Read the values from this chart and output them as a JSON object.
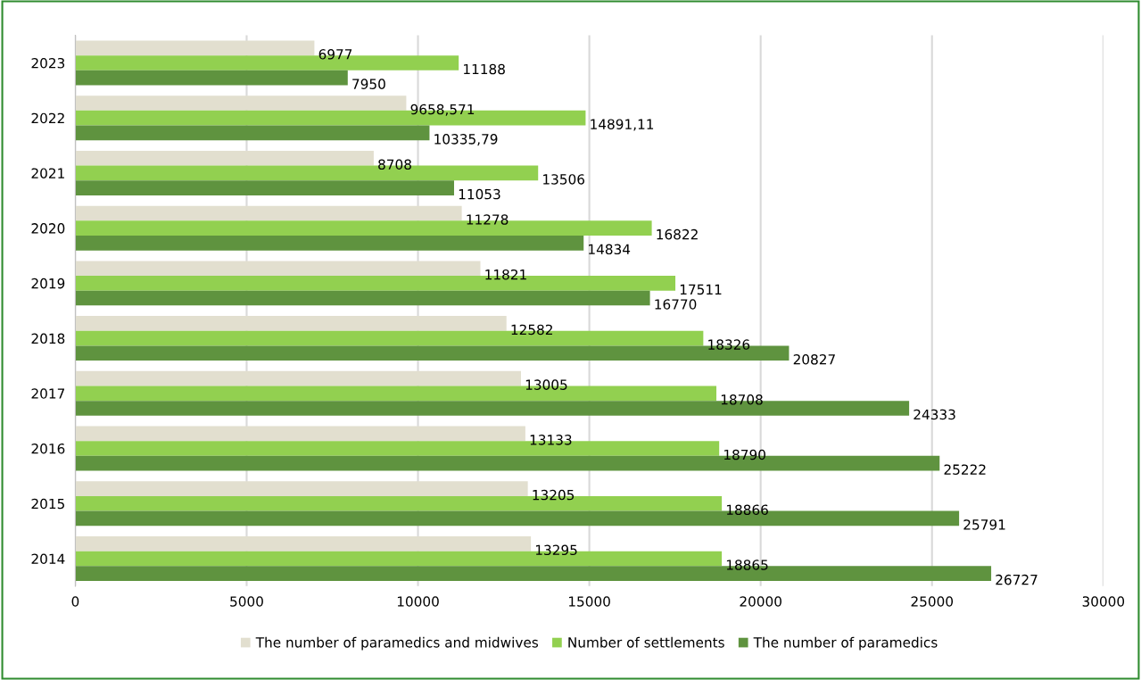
{
  "chart_data": {
    "type": "bar",
    "orientation": "horizontal",
    "categories": [
      "2023",
      "2022",
      "2021",
      "2020",
      "2019",
      "2018",
      "2017",
      "2016",
      "2015",
      "2014"
    ],
    "series": [
      {
        "name": "The number of paramedics and midwives",
        "color": "#e2dfcf",
        "values": [
          6977,
          9658.571,
          8708,
          11278,
          11821,
          12582,
          13005,
          13133,
          13205,
          13295
        ],
        "value_labels": [
          "6977",
          "9658,571",
          "8708",
          "11278",
          "11821",
          "12582",
          "13005",
          "13133",
          "13205",
          "13295"
        ]
      },
      {
        "name": "Number of settlements",
        "color": "#92d050",
        "values": [
          11188,
          14891.11,
          13506,
          16822,
          17511,
          18326,
          18708,
          18790,
          18866,
          18865
        ],
        "value_labels": [
          "11188",
          "14891,11",
          "13506",
          "16822",
          "17511",
          "18326",
          "18708",
          "18790",
          "18866",
          "18865"
        ]
      },
      {
        "name": "The number of paramedics",
        "color": "#5f933f",
        "values": [
          7950,
          10335.79,
          11053,
          14834,
          16770,
          20827,
          24333,
          25222,
          25791,
          26727
        ],
        "value_labels": [
          "7950",
          "10335,79",
          "11053",
          "14834",
          "16770",
          "20827",
          "24333",
          "25222",
          "25791",
          "26727"
        ]
      }
    ],
    "xlim": [
      0,
      30000
    ],
    "xticks": [
      0,
      5000,
      10000,
      15000,
      20000,
      25000,
      30000
    ],
    "grid": "x",
    "legend": "bottom"
  }
}
